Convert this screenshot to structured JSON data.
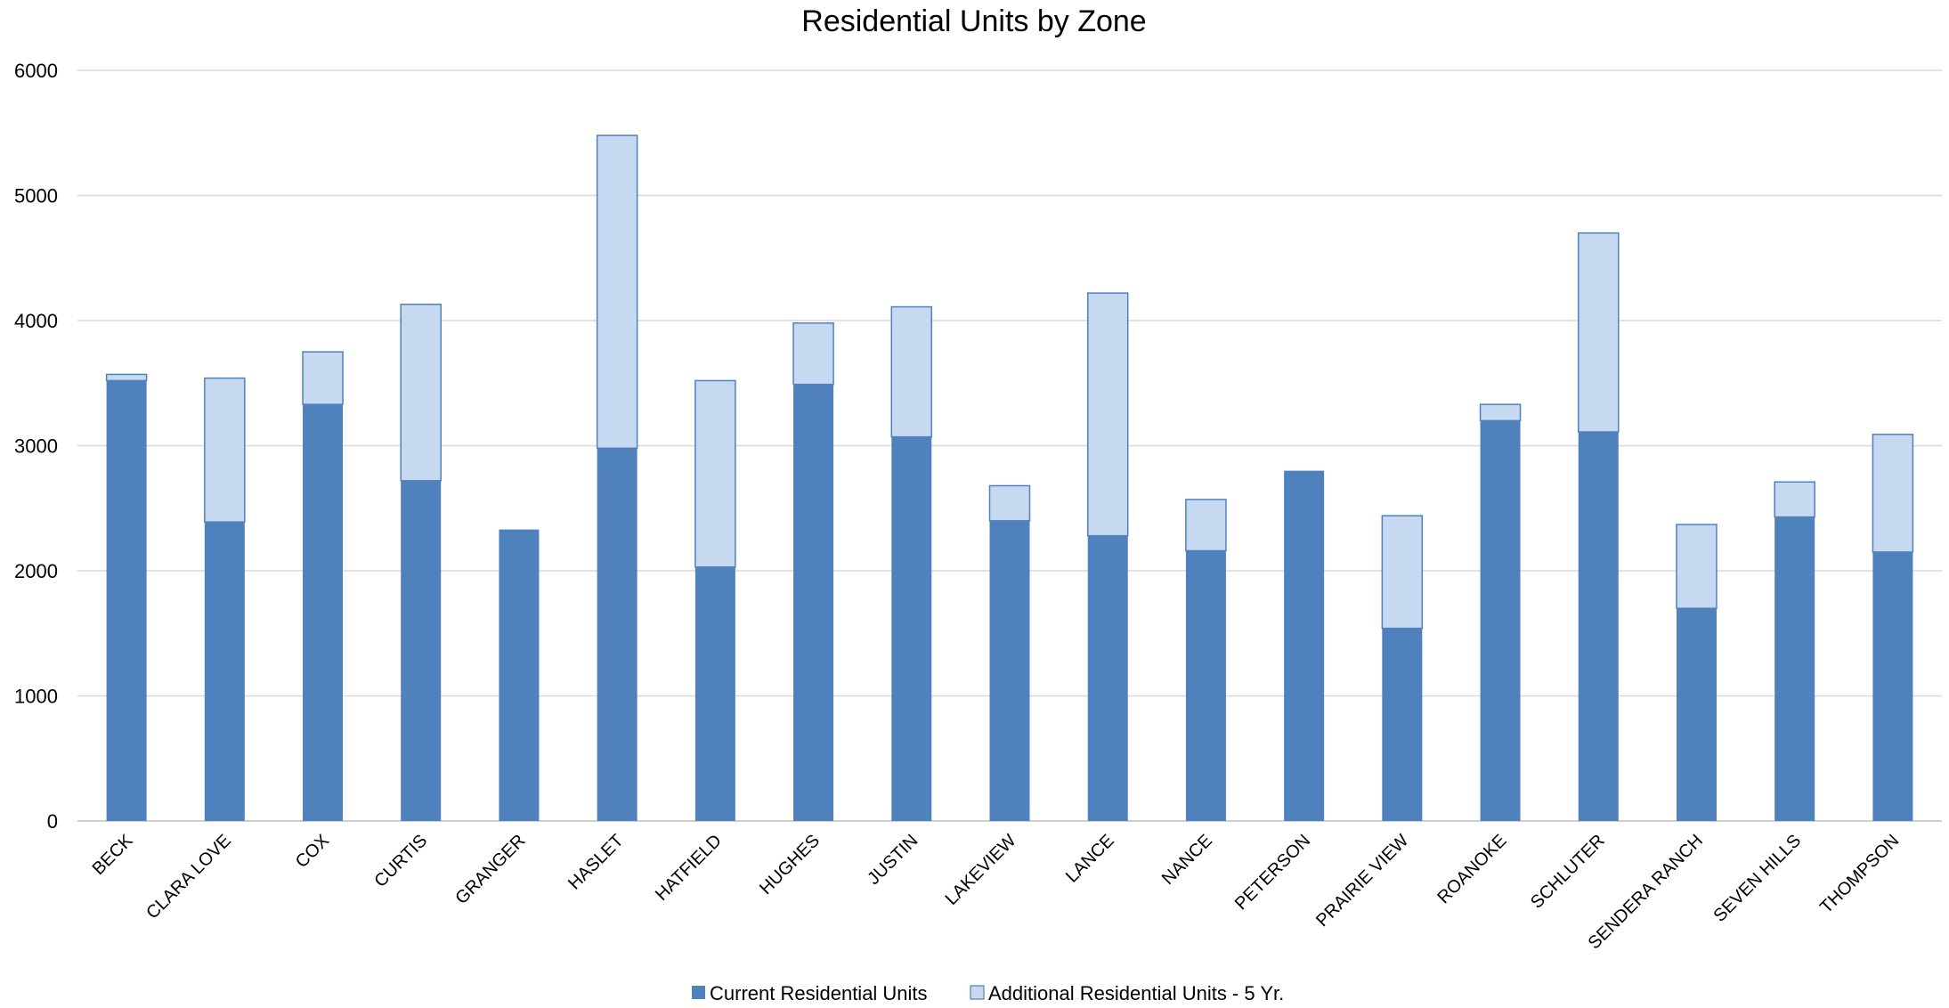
{
  "chart_data": {
    "type": "bar",
    "stacked": true,
    "title": "Residential Units by Zone",
    "xlabel": "",
    "ylabel": "",
    "ylim": [
      0,
      6000
    ],
    "yticks": [
      "0",
      "1000",
      "2000",
      "3000",
      "4000",
      "5000",
      "6000"
    ],
    "grid": true,
    "legend_position": "bottom",
    "categories": [
      "BECK",
      "CLARA LOVE",
      "COX",
      "CURTIS",
      "GRANGER",
      "HASLET",
      "HATFIELD",
      "HUGHES",
      "JUSTIN",
      "LAKEVIEW",
      "LANCE",
      "NANCE",
      "PETERSON",
      "PRAIRIE VIEW",
      "ROANOKE",
      "SCHLUTER",
      "SENDERA RANCH",
      "SEVEN HILLS",
      "THOMPSON"
    ],
    "series": [
      {
        "name": "Current Residential Units",
        "color": "#4f81bd",
        "values": [
          3520,
          2390,
          3330,
          2720,
          2330,
          2980,
          2030,
          3490,
          3070,
          2400,
          2280,
          2160,
          2800,
          1540,
          3200,
          3110,
          1700,
          2430,
          2150
        ]
      },
      {
        "name": "Additional Residential Units - 5 Yr.",
        "color": "#c6d9f1",
        "values": [
          50,
          1150,
          420,
          1410,
          0,
          2500,
          1490,
          490,
          1040,
          280,
          1940,
          410,
          0,
          900,
          130,
          1590,
          670,
          280,
          940
        ]
      }
    ]
  }
}
